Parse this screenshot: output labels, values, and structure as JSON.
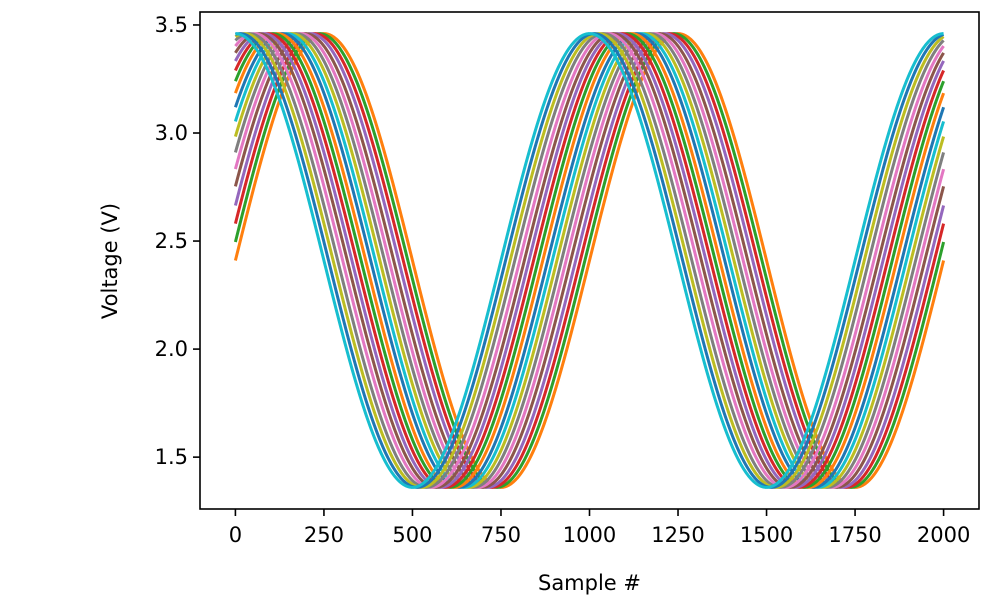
{
  "chart_data": {
    "type": "line",
    "title": "",
    "xlabel": "Sample #",
    "ylabel": "Voltage (V)",
    "xlim": [
      -100,
      2100
    ],
    "ylim": [
      1.26,
      3.56
    ],
    "x_ticks": [
      0,
      250,
      500,
      750,
      1000,
      1250,
      1500,
      1750,
      2000
    ],
    "x_tick_labels": [
      "0",
      "250",
      "500",
      "750",
      "1000",
      "1250",
      "1500",
      "1750",
      "2000"
    ],
    "y_ticks": [
      1.5,
      2.0,
      2.5,
      3.0,
      3.5
    ],
    "y_tick_labels": [
      "1.5",
      "2.0",
      "2.5",
      "3.0",
      "3.5"
    ],
    "grid": false,
    "legend": "none",
    "waveform": {
      "shape": "sine",
      "min_voltage": 1.36,
      "max_voltage": 3.46,
      "period_samples": 1000,
      "sample_range": [
        0,
        2000
      ],
      "phase_lags_samples": [
        250,
        237,
        224,
        211,
        197,
        184,
        171,
        158,
        145,
        132,
        118,
        105,
        92,
        79,
        66,
        53,
        39,
        26,
        13,
        0
      ]
    },
    "series_colors": [
      "#ff7f0e",
      "#2ca02c",
      "#d62728",
      "#9467bd",
      "#8c564b",
      "#e377c2",
      "#7f7f7f",
      "#bcbd22",
      "#17becf",
      "#1f77b4",
      "#ff7f0e",
      "#2ca02c",
      "#d62728",
      "#9467bd",
      "#8c564b",
      "#e377c2",
      "#7f7f7f",
      "#bcbd22",
      "#1f77b4",
      "#17becf"
    ]
  }
}
